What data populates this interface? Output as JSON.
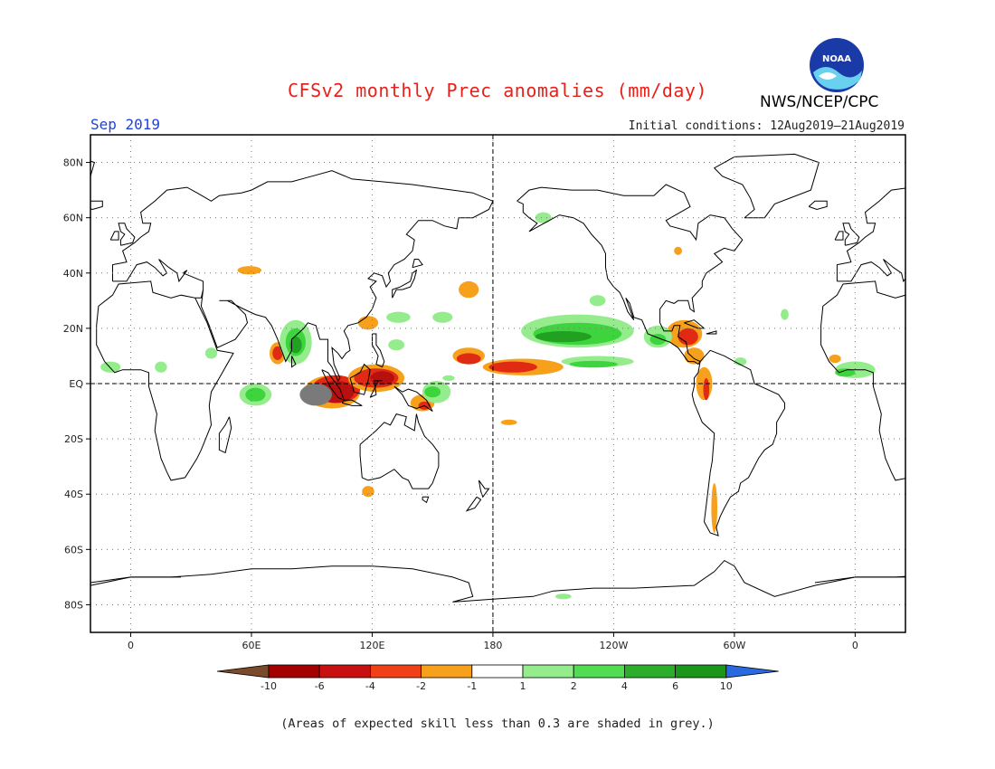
{
  "title": "CFSv2 monthly Prec anomalies (mm/day)",
  "month": "Sep 2019",
  "initial_conditions": "Initial conditions: 12Aug2019–21Aug2019",
  "agency": "NWS/NCEP/CPC",
  "logo_text": "NOAA",
  "note": "(Areas of expected skill less than 0.3 are shaded in grey.)",
  "map": {
    "lat_labels": [
      "80N",
      "60N",
      "40N",
      "20N",
      "EQ",
      "20S",
      "40S",
      "60S",
      "80S"
    ],
    "lat_values": [
      80,
      60,
      40,
      20,
      0,
      -20,
      -40,
      -60,
      -80
    ],
    "lon_labels": [
      "0",
      "60E",
      "120E",
      "180",
      "120W",
      "60W",
      "0"
    ],
    "lon_values": [
      0,
      60,
      120,
      180,
      240,
      300,
      360
    ],
    "lon_range": [
      -20,
      385
    ],
    "lat_range": [
      -90,
      90
    ]
  },
  "colorbar": {
    "labels": [
      "-10",
      "-6",
      "-4",
      "-2",
      "-1",
      "1",
      "2",
      "4",
      "6",
      "10"
    ],
    "colors": [
      "#7a4a2a",
      "#a50000",
      "#c81010",
      "#f04018",
      "#f7a01c",
      "#ffffff",
      "#94ec8c",
      "#52dc52",
      "#2cae2c",
      "#1a961a",
      "#2a6ae0"
    ]
  },
  "anomaly_colors": {
    "dark_red": "#b80f0f",
    "red": "#e02a14",
    "orange": "#f7a01c",
    "light_green": "#94ec8c",
    "green": "#3ed43e",
    "dark_green": "#21a021",
    "grey": "#7a7a7a"
  }
}
